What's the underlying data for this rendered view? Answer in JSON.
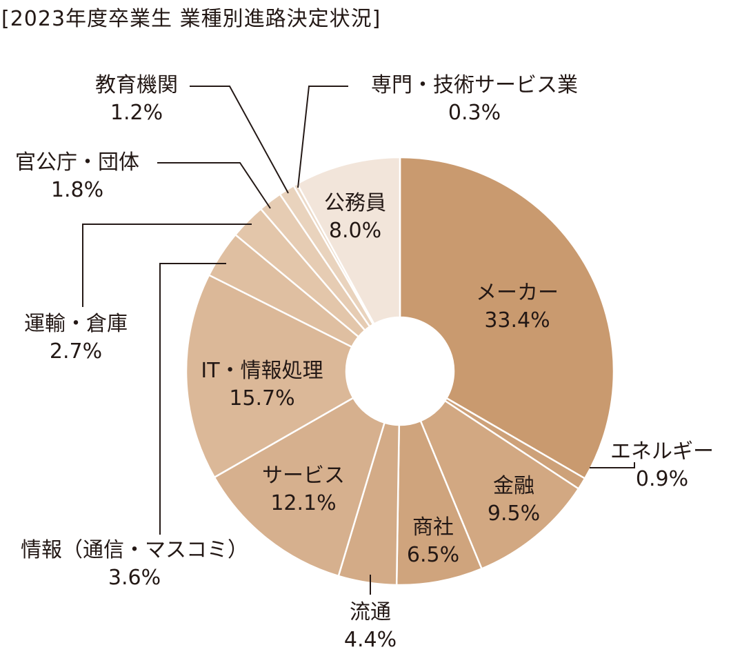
{
  "chart_data": {
    "type": "pie",
    "variant": "donut",
    "title": "[2023年度卒業生 業種別進路決定状況]",
    "unit": "%",
    "slices": [
      {
        "label": "メーカー",
        "value": 33.4,
        "value_label": "33.4%",
        "color": "#c99a6f"
      },
      {
        "label": "エネルギー",
        "value": 0.9,
        "value_label": "0.9%",
        "color": "#cda179"
      },
      {
        "label": "金融",
        "value": 9.5,
        "value_label": "9.5%",
        "color": "#d2a882"
      },
      {
        "label": "商社",
        "value": 6.5,
        "value_label": "6.5%",
        "color": "#cfa47d"
      },
      {
        "label": "流通",
        "value": 4.4,
        "value_label": "4.4%",
        "color": "#d3ab87"
      },
      {
        "label": "サービス",
        "value": 12.1,
        "value_label": "12.1%",
        "color": "#d6b08e"
      },
      {
        "label": "IT・情報処理",
        "value": 15.7,
        "value_label": "15.7%",
        "color": "#dbb898"
      },
      {
        "label": "情報（通信・マスコミ）",
        "value": 3.6,
        "value_label": "3.6%",
        "color": "#dfbfa1"
      },
      {
        "label": "運輸・倉庫",
        "value": 2.7,
        "value_label": "2.7%",
        "color": "#e3c6aa"
      },
      {
        "label": "官公庁・団体",
        "value": 1.8,
        "value_label": "1.8%",
        "color": "#e6ccb3"
      },
      {
        "label": "教育機関",
        "value": 1.2,
        "value_label": "1.2%",
        "color": "#e9d3bd"
      },
      {
        "label": "専門・技術サービス業",
        "value": 0.3,
        "value_label": "0.3%",
        "color": "#ecdac8"
      },
      {
        "label": "公務員",
        "value": 8.0,
        "value_label": "8.0%",
        "color": "#f2e5da"
      }
    ],
    "start_angle": "top",
    "direction": "clockwise",
    "legend": "none"
  }
}
